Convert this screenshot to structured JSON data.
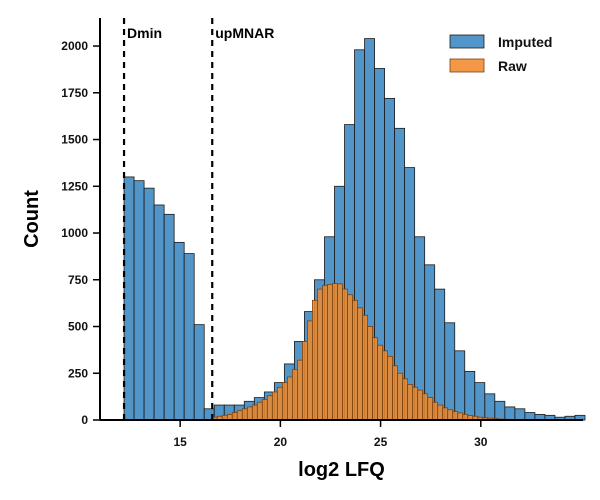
{
  "chart_data": {
    "type": "histogram",
    "xlabel": "log2 LFQ",
    "ylabel": "Count",
    "xlim": [
      11,
      35.1
    ],
    "ylim": [
      0,
      2150
    ],
    "xticks": [
      15,
      20,
      25,
      30
    ],
    "yticks": [
      0,
      250,
      500,
      750,
      1000,
      1250,
      1500,
      1750,
      2000
    ],
    "grid": false,
    "legend_position": "top-right",
    "vlines": [
      {
        "x": 12.2,
        "label": "Dmin",
        "style": "dashed"
      },
      {
        "x": 16.6,
        "label": "upMNAR",
        "style": "dashed"
      }
    ],
    "series": [
      {
        "name": "Imputed",
        "color": "#3A86C0",
        "x_start": 12.2,
        "bin_width": 0.5,
        "values": [
          1300,
          1280,
          1240,
          1150,
          1100,
          950,
          890,
          510,
          60,
          80,
          80,
          80,
          100,
          120,
          150,
          200,
          300,
          420,
          580,
          750,
          980,
          1250,
          1580,
          1980,
          2040,
          1880,
          1720,
          1560,
          1350,
          980,
          830,
          700,
          520,
          370,
          260,
          200,
          140,
          100,
          70,
          60,
          40,
          30,
          25,
          15,
          20,
          25
        ]
      },
      {
        "name": "Raw",
        "color": "#F08A2C",
        "x_start": 16.6,
        "bin_width": 0.25,
        "values": [
          15,
          20,
          25,
          30,
          40,
          50,
          60,
          70,
          80,
          95,
          110,
          130,
          150,
          175,
          200,
          230,
          270,
          320,
          420,
          530,
          640,
          700,
          720,
          725,
          730,
          728,
          700,
          670,
          640,
          600,
          560,
          500,
          440,
          400,
          370,
          340,
          290,
          250,
          220,
          190,
          175,
          160,
          140,
          120,
          95,
          80,
          65,
          55,
          45,
          38,
          30,
          24,
          20,
          15,
          12,
          10,
          8,
          5,
          4,
          3
        ]
      }
    ]
  }
}
